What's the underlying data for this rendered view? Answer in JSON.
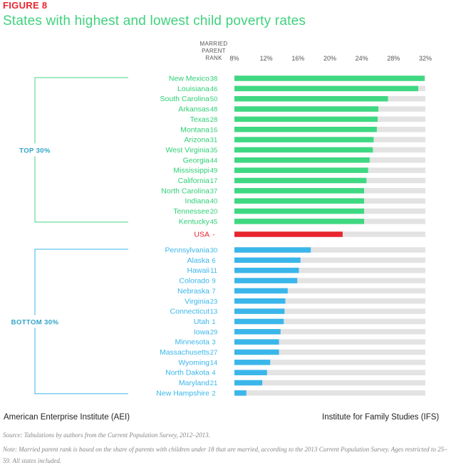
{
  "figure_label": "FIGURE 8",
  "footer": {
    "left": "American Enterprise Institute (AEI)",
    "right": "Institute for Family Studies (IFS)"
  },
  "source": "Source: Tabulations by authors from the Current Population Survey, 2012–2013.",
  "note": "Note: Married parent rank is based on the share of parents with children under 18 that are married, according to the 2013 Current Population Survey. Ages restricted to 25–59. All states included.",
  "colors": {
    "top": "#3fd882",
    "usa": "#e8242d",
    "bottom": "#3ab6ea",
    "track": "#e3e3e3",
    "group_label": "#2fa2c8"
  },
  "chart_data": {
    "type": "bar",
    "orientation": "horizontal",
    "title": "States with highest and lowest child poverty rates",
    "rank_header": [
      "MARRIED",
      "PARENT",
      "RANK"
    ],
    "xlim": [
      8,
      32
    ],
    "xticks": [
      "8%",
      "12%",
      "16%",
      "20%",
      "24%",
      "28%",
      "32%"
    ],
    "groups": [
      {
        "label": "TOP 30%",
        "color": "top",
        "rows": [
          {
            "state": "New Mexico",
            "rank": "38",
            "value": 31.9
          },
          {
            "state": "Louisiana",
            "rank": "46",
            "value": 31.1
          },
          {
            "state": "South Carolina",
            "rank": "50",
            "value": 27.3
          },
          {
            "state": "Arkansas",
            "rank": "48",
            "value": 26.1
          },
          {
            "state": "Texas",
            "rank": "28",
            "value": 26.0
          },
          {
            "state": "Montana",
            "rank": "16",
            "value": 25.9
          },
          {
            "state": "Arizona",
            "rank": "31",
            "value": 25.5
          },
          {
            "state": "West Virginia",
            "rank": "35",
            "value": 25.4
          },
          {
            "state": "Georgia",
            "rank": "44",
            "value": 25.0
          },
          {
            "state": "Mississippi",
            "rank": "49",
            "value": 24.8
          },
          {
            "state": "California",
            "rank": "17",
            "value": 24.6
          },
          {
            "state": "North Carolina",
            "rank": "37",
            "value": 24.3
          },
          {
            "state": "Indiana",
            "rank": "40",
            "value": 24.3
          },
          {
            "state": "Tennessee",
            "rank": "20",
            "value": 24.3
          },
          {
            "state": "Kentucky",
            "rank": "45",
            "value": 24.3
          }
        ]
      },
      {
        "label": "",
        "color": "usa",
        "rows": [
          {
            "state": "USA",
            "rank": "-",
            "value": 21.6
          }
        ]
      },
      {
        "label": "BOTTOM 30%",
        "color": "bottom",
        "rows": [
          {
            "state": "Pennsylvania",
            "rank": "30",
            "value": 17.6
          },
          {
            "state": "Alaska",
            "rank": "6",
            "value": 16.3
          },
          {
            "state": "Hawaii",
            "rank": "11",
            "value": 16.1
          },
          {
            "state": "Colorado",
            "rank": "9",
            "value": 15.9
          },
          {
            "state": "Nebraska",
            "rank": "7",
            "value": 14.7
          },
          {
            "state": "Virginia",
            "rank": "23",
            "value": 14.4
          },
          {
            "state": "Connecticut",
            "rank": "13",
            "value": 14.3
          },
          {
            "state": "Utah",
            "rank": "1",
            "value": 14.2
          },
          {
            "state": "Iowa",
            "rank": "29",
            "value": 13.8
          },
          {
            "state": "Minnesota",
            "rank": "3",
            "value": 13.6
          },
          {
            "state": "Massachusetts",
            "rank": "27",
            "value": 13.6
          },
          {
            "state": "Wyoming",
            "rank": "14",
            "value": 12.5
          },
          {
            "state": "North Dakota",
            "rank": "4",
            "value": 12.1
          },
          {
            "state": "Maryland",
            "rank": "21",
            "value": 11.5
          },
          {
            "state": "New Hampshire",
            "rank": "2",
            "value": 9.5
          }
        ]
      }
    ]
  }
}
